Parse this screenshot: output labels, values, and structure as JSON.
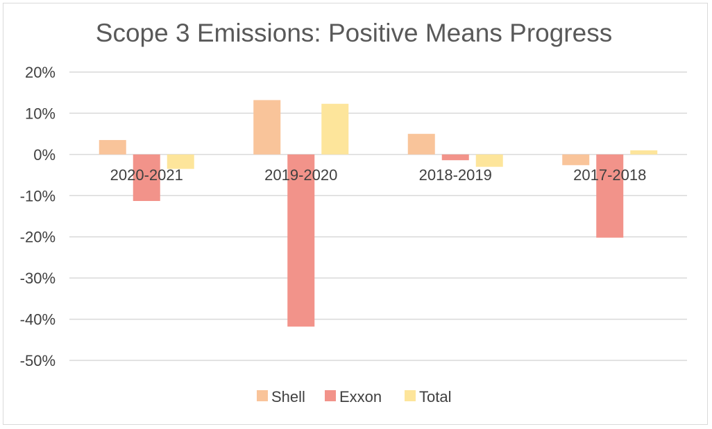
{
  "chart_data": {
    "type": "bar",
    "title": "Scope 3 Emissions: Positive Means Progress",
    "xlabel": "",
    "ylabel": "",
    "categories": [
      "2020-2021",
      "2019-2020",
      "2018-2019",
      "2017-2018"
    ],
    "series": [
      {
        "name": "Shell",
        "values": [
          3.5,
          13.2,
          5.0,
          -2.6
        ],
        "color": "#f9c49a"
      },
      {
        "name": "Exxon",
        "values": [
          -11.3,
          -41.8,
          -1.4,
          -20.2
        ],
        "color": "#f2938a"
      },
      {
        "name": "Total",
        "values": [
          -3.5,
          12.3,
          -3.0,
          1.0
        ],
        "color": "#fde59b"
      }
    ],
    "ylim": [
      -50,
      20
    ],
    "yticks": [
      20,
      10,
      0,
      -10,
      -20,
      -30,
      -40,
      -50
    ],
    "ytick_labels": [
      "20%",
      "10%",
      "0%",
      "-10%",
      "-20%",
      "-30%",
      "-40%",
      "-50%"
    ],
    "grid": true,
    "legend_position": "bottom"
  }
}
